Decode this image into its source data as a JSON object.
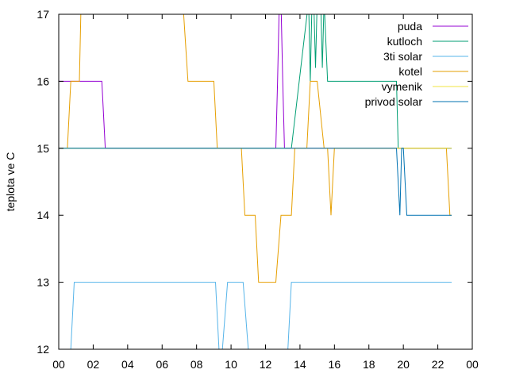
{
  "chart_data": {
    "type": "line",
    "title": "",
    "xlabel": "",
    "ylabel": "teplota ve C",
    "xlim": [
      0,
      24
    ],
    "ylim": [
      12,
      17
    ],
    "x_ticks": [
      "00",
      "02",
      "04",
      "06",
      "08",
      "10",
      "12",
      "14",
      "16",
      "18",
      "20",
      "22",
      "00"
    ],
    "y_ticks": [
      "12",
      "13",
      "14",
      "15",
      "16",
      "17"
    ],
    "grid": false,
    "legend_position": "top-right",
    "series": [
      {
        "name": "puda",
        "color": "#9400d3",
        "points": [
          [
            0,
            16
          ],
          [
            2.5,
            16
          ],
          [
            2.7,
            15
          ],
          [
            12.6,
            15
          ],
          [
            12.7,
            16
          ],
          [
            12.8,
            17.2
          ],
          [
            12.9,
            17.2
          ],
          [
            13.0,
            16
          ],
          [
            13.1,
            15
          ],
          [
            22.8,
            15
          ]
        ]
      },
      {
        "name": "kutloch",
        "color": "#009e73",
        "points": [
          [
            0,
            15
          ],
          [
            13.5,
            15
          ],
          [
            14.5,
            17.2
          ],
          [
            14.6,
            16.0
          ],
          [
            14.7,
            17.2
          ],
          [
            14.8,
            17.2
          ],
          [
            14.9,
            16.2
          ],
          [
            15.0,
            17.2
          ],
          [
            15.2,
            17.2
          ],
          [
            15.3,
            16.2
          ],
          [
            15.4,
            17.2
          ],
          [
            15.6,
            16
          ],
          [
            19.6,
            16
          ],
          [
            19.7,
            15
          ],
          [
            22.8,
            15
          ]
        ]
      },
      {
        "name": "3ti solar",
        "color": "#56b4e9",
        "points": [
          [
            0.7,
            12
          ],
          [
            0.9,
            13
          ],
          [
            9.1,
            13
          ],
          [
            9.3,
            12
          ],
          [
            9.5,
            12
          ],
          [
            9.8,
            13
          ],
          [
            10.7,
            13
          ],
          [
            11.0,
            12
          ],
          [
            13.3,
            12
          ],
          [
            13.5,
            13
          ],
          [
            22.8,
            13
          ]
        ]
      },
      {
        "name": "kotel",
        "color": "#e69f00",
        "points": [
          [
            0.5,
            15
          ],
          [
            0.7,
            16
          ],
          [
            1.2,
            16
          ],
          [
            1.3,
            17.2
          ],
          [
            7.2,
            17.2
          ],
          [
            7.5,
            16
          ],
          [
            9.0,
            16
          ],
          [
            9.2,
            15
          ],
          [
            10.6,
            15
          ],
          [
            10.8,
            14
          ],
          [
            11.4,
            14
          ],
          [
            11.6,
            13
          ],
          [
            12.6,
            13
          ],
          [
            12.9,
            14
          ],
          [
            13.5,
            14
          ],
          [
            13.7,
            15
          ],
          [
            14.4,
            15
          ],
          [
            14.6,
            16
          ],
          [
            15.0,
            16
          ],
          [
            15.4,
            15
          ],
          [
            15.6,
            15
          ],
          [
            15.8,
            14
          ],
          [
            16.0,
            15
          ],
          [
            22.5,
            15
          ],
          [
            22.7,
            14
          ],
          [
            22.8,
            14
          ]
        ]
      },
      {
        "name": "vymenik",
        "color": "#f0e442",
        "points": [
          [
            0,
            15
          ],
          [
            22.8,
            15
          ]
        ]
      },
      {
        "name": "privod solar",
        "color": "#0072b2",
        "points": [
          [
            0,
            15
          ],
          [
            19.6,
            15
          ],
          [
            19.8,
            14
          ],
          [
            19.9,
            15
          ],
          [
            20.0,
            15
          ],
          [
            20.2,
            14
          ],
          [
            22.8,
            14
          ]
        ]
      }
    ]
  }
}
